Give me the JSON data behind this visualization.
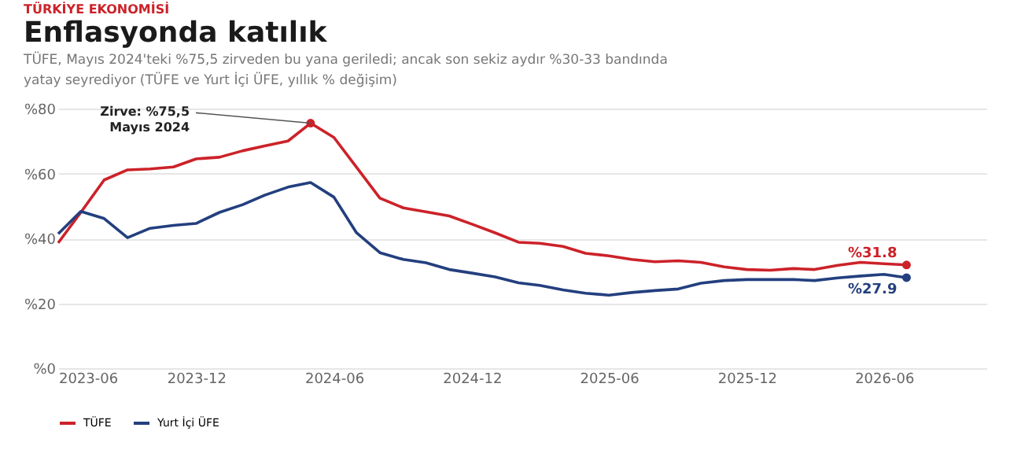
{
  "chart_data": {
    "type": "line",
    "title": "Enflasyonda katılık",
    "subtitle": "TÜFE, Mayıs 2024'teki %75,5 zirveden bu yana geriledi; ancak son sekiz aydır %30-33 bandında yatay seyrediyor  (TÜFE ve Yurt İçi ÜFE, yıllık % değişim)",
    "x": [
      "2023-06",
      "2023-07",
      "2023-08",
      "2023-09",
      "2023-10",
      "2023-11",
      "2023-12",
      "2024-01",
      "2024-02",
      "2024-03",
      "2024-04",
      "2024-05",
      "2024-06",
      "2024-07",
      "2024-08",
      "2024-09",
      "2024-10",
      "2024-11",
      "2024-12",
      "2025-01",
      "2025-02",
      "2025-03",
      "2025-04",
      "2025-05",
      "2025-06",
      "2025-07",
      "2025-08",
      "2025-09",
      "2025-10",
      "2025-11",
      "2025-12",
      "2026-01",
      "2026-02",
      "2026-03",
      "2026-04",
      "2026-05",
      "2026-06",
      "2026-07"
    ],
    "series": [
      {
        "name": "TÜFE",
        "color": "#cc2229",
        "values": [
          38.6,
          48,
          58,
          61.1,
          61.4,
          62,
          64.5,
          65,
          67,
          68.5,
          70,
          75.5,
          71.1,
          61.9,
          52.4,
          49.4,
          48.2,
          46.9,
          44.4,
          41.7,
          38.8,
          38.5,
          37.5,
          35.4,
          34.6,
          33.5,
          32.8,
          33.1,
          32.6,
          31.2,
          30.4,
          30.2,
          30.7,
          30.4,
          31.7,
          32.6,
          32.2,
          31.8
        ]
      },
      {
        "name": "Yurt İçi ÜFE",
        "color": "#233f7e",
        "values": [
          41.4,
          48.3,
          46.1,
          40.2,
          43.1,
          44,
          44.6,
          48,
          50.4,
          53.3,
          55.8,
          57.2,
          52.7,
          41.7,
          35.6,
          33.5,
          32.5,
          30.4,
          29.3,
          28.1,
          26.3,
          25.5,
          24.1,
          23.1,
          22.5,
          23.3,
          23.9,
          24.4,
          26.2,
          27,
          27.3,
          27.3,
          27.3,
          27,
          27.8,
          28.4,
          28.9,
          27.9
        ]
      }
    ],
    "xlim": [
      "2023-06",
      "2026-10-15"
    ],
    "xticks": [
      "2023-06",
      "2023-12",
      "2024-06",
      "2024-12",
      "2025-06",
      "2025-12",
      "2026-06"
    ],
    "ylim": [
      0,
      80
    ],
    "yticks": [
      {
        "value": 0,
        "label": "%0"
      },
      {
        "value": 20,
        "label": "%20"
      },
      {
        "value": 40,
        "label": "%40"
      },
      {
        "value": 60,
        "label": "%60"
      },
      {
        "value": 80,
        "label": "%80"
      }
    ],
    "annotations": [
      "TÜRKİYE EKONOMİSİ",
      {
        "text": "Zirve: %75,5\nMayıs 2024",
        "x": "2024-05",
        "y": 75.5
      },
      {
        "text": "%31.8",
        "x": "2026-07",
        "y": 31.8
      },
      {
        "text": "%27.9",
        "x": "2026-07",
        "y": 27.9
      }
    ],
    "grid": "y",
    "legend": "bottom left",
    "marker": "none",
    "line_style": "solid"
  }
}
